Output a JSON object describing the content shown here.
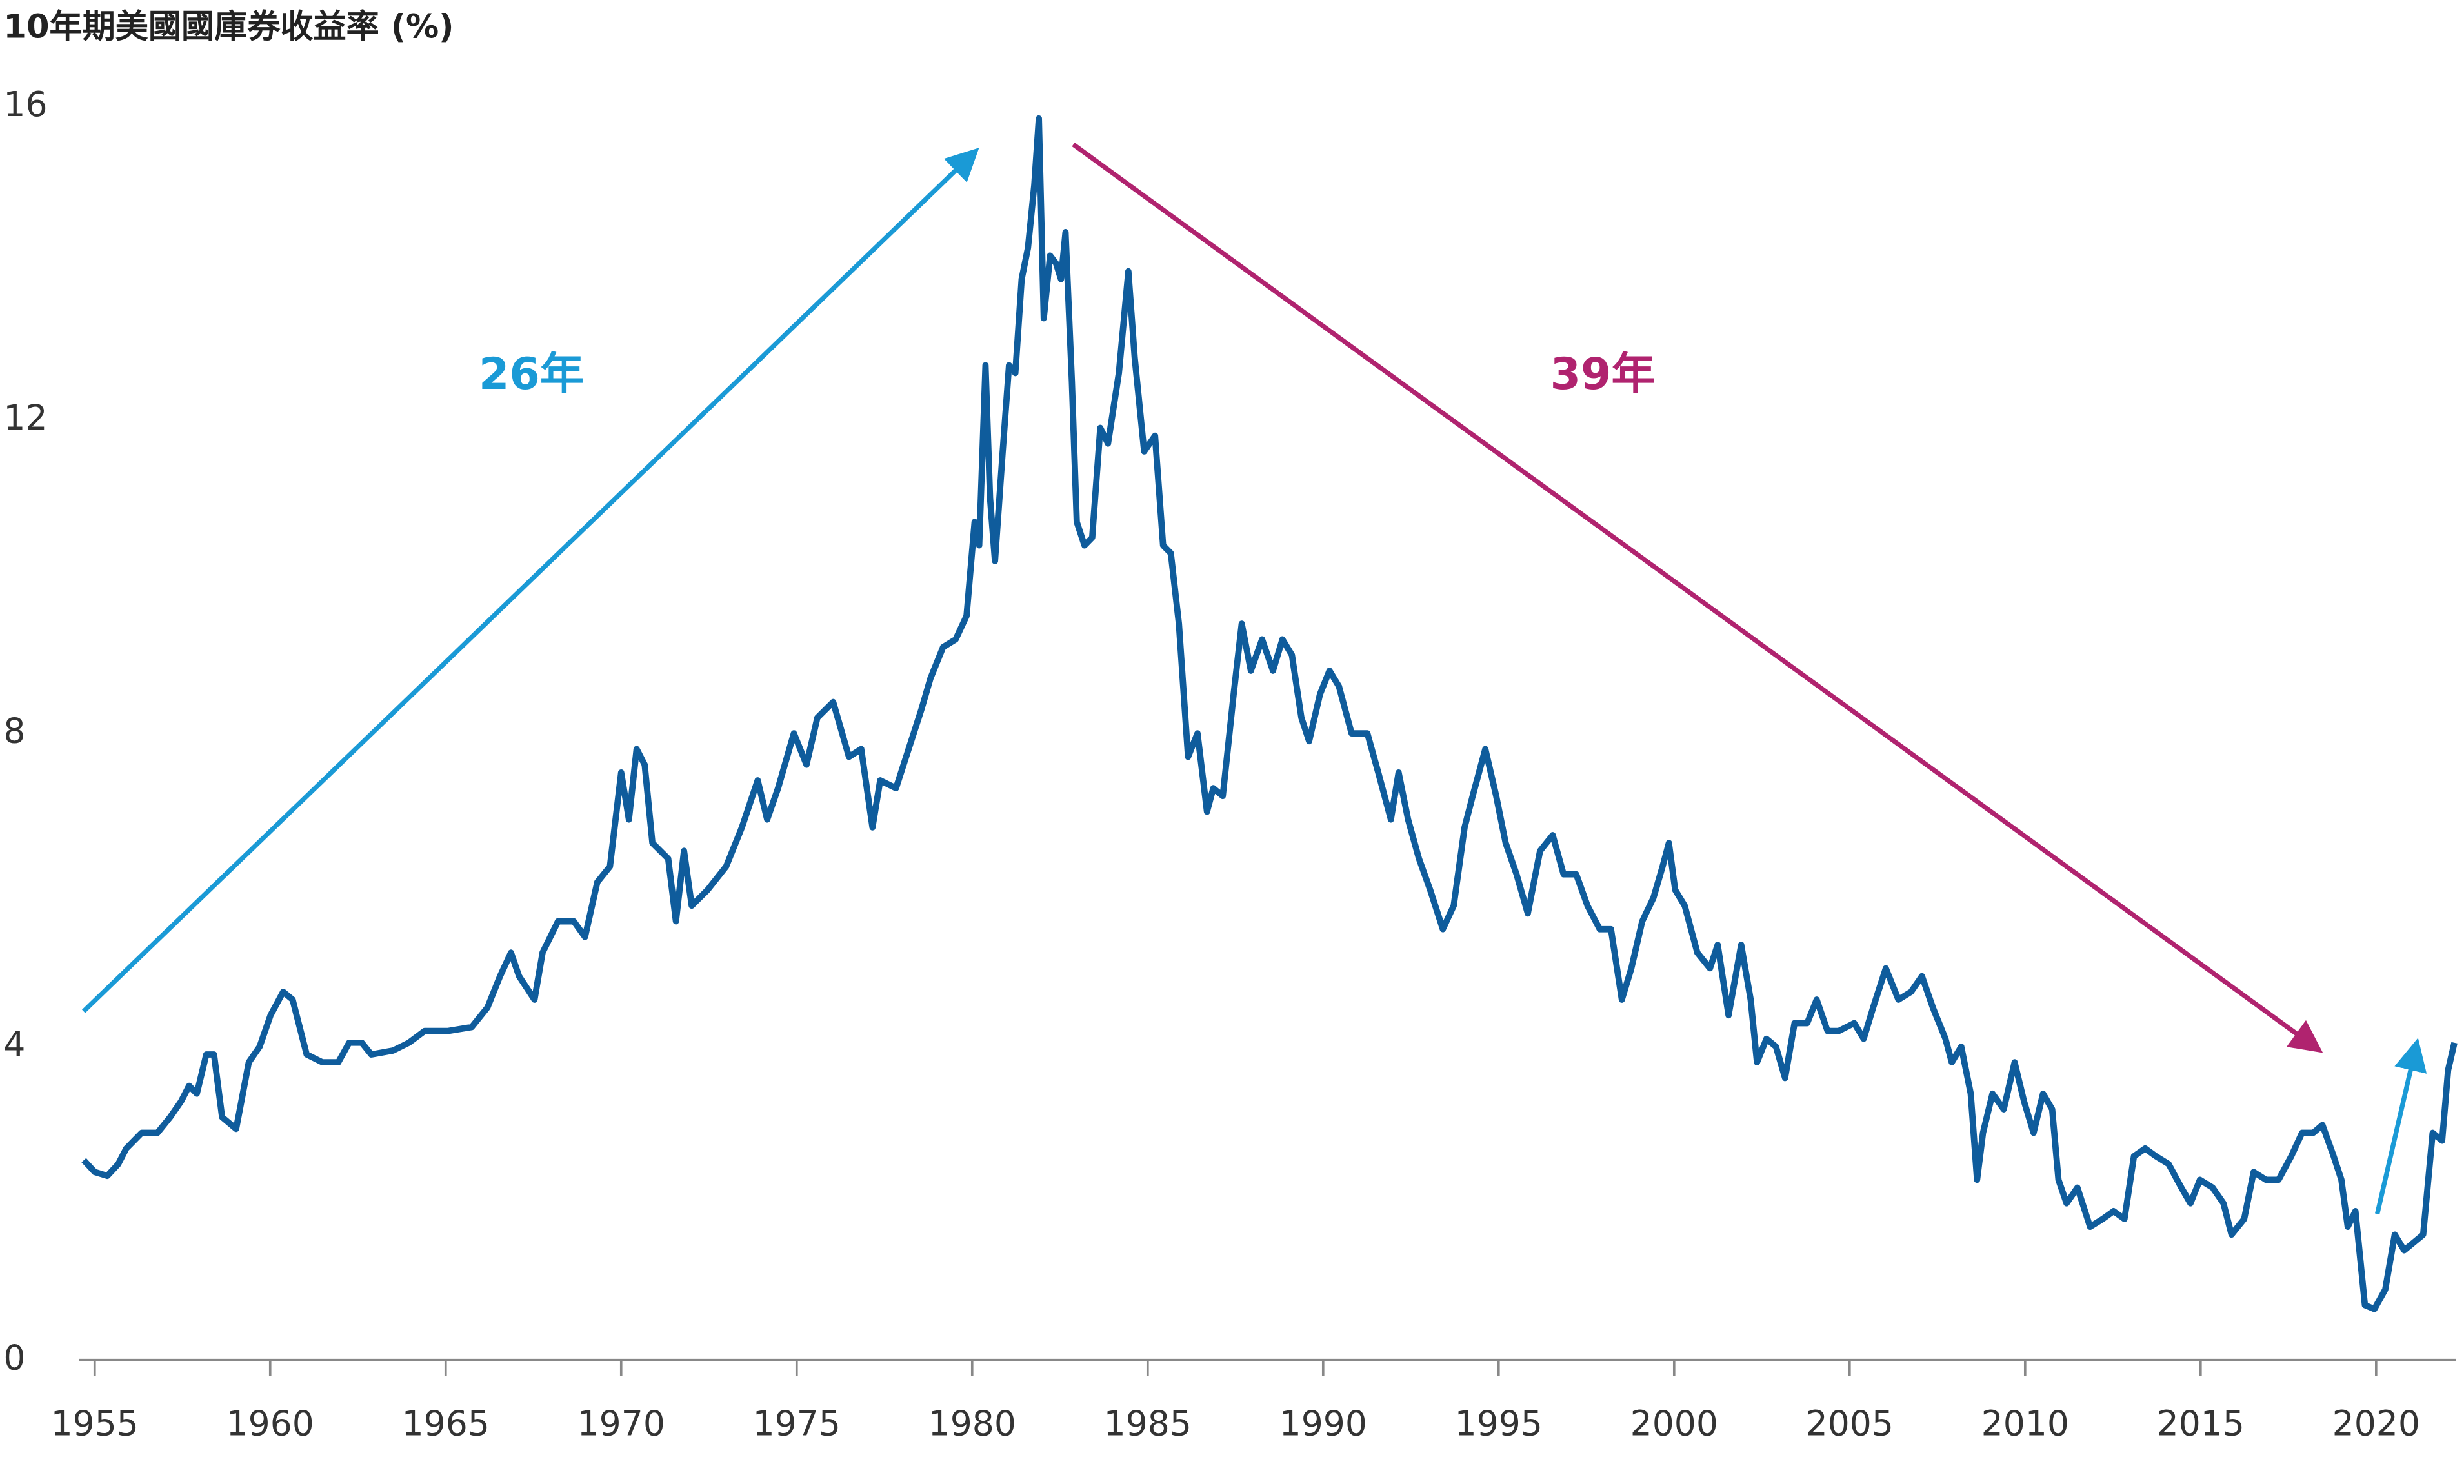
{
  "chart_data": {
    "type": "line",
    "title": "10年期美國國庫券收益率 (%)",
    "annotations": [
      "26年",
      "39年"
    ],
    "color": "#0f5c9c",
    "xlim": [
      1954.55,
      2022.27
    ],
    "xticks": [
      1955,
      1960,
      1965,
      1970,
      1975,
      1980,
      1985,
      1990,
      1995,
      2000,
      2005,
      2010,
      2015,
      2020
    ],
    "ylim": [
      0,
      16
    ],
    "yticks": [
      0,
      4,
      8,
      12,
      16
    ],
    "grid": false,
    "x": [
      1954.69,
      1955.0,
      1955.36,
      1955.67,
      1955.9,
      1956.34,
      1956.79,
      1957.15,
      1957.46,
      1957.69,
      1957.91,
      1958.18,
      1958.4,
      1958.63,
      1959.03,
      1959.39,
      1959.7,
      1960.01,
      1960.37,
      1960.64,
      1961.04,
      1961.49,
      1961.94,
      1962.25,
      1962.61,
      1962.88,
      1963.5,
      1963.95,
      1964.4,
      1965.07,
      1965.74,
      1966.19,
      1966.55,
      1966.86,
      1967.09,
      1967.53,
      1967.76,
      1968.2,
      1968.65,
      1968.97,
      1969.32,
      1969.68,
      1970.0,
      1970.22,
      1970.44,
      1970.67,
      1970.89,
      1971.34,
      1971.56,
      1971.79,
      1972.01,
      1972.46,
      1972.99,
      1973.44,
      1973.89,
      1974.16,
      1974.47,
      1974.92,
      1975.28,
      1975.59,
      1976.04,
      1976.49,
      1976.84,
      1977.16,
      1977.38,
      1977.83,
      1978.19,
      1978.55,
      1978.81,
      1979.17,
      1979.53,
      1979.84,
      1980.07,
      1980.2,
      1980.38,
      1980.51,
      1980.65,
      1980.87,
      1981.05,
      1981.23,
      1981.41,
      1981.59,
      1981.77,
      1981.9,
      1982.04,
      1982.22,
      1982.39,
      1982.53,
      1982.66,
      1982.84,
      1982.98,
      1983.2,
      1983.42,
      1983.65,
      1983.87,
      1984.18,
      1984.45,
      1984.63,
      1984.9,
      1985.21,
      1985.44,
      1985.66,
      1985.89,
      1986.15,
      1986.42,
      1986.69,
      1986.87,
      1987.14,
      1987.45,
      1987.68,
      1987.94,
      1988.26,
      1988.57,
      1988.84,
      1989.11,
      1989.38,
      1989.6,
      1989.91,
      1990.18,
      1990.45,
      1990.81,
      1991.26,
      1991.57,
      1991.93,
      1992.15,
      1992.42,
      1992.73,
      1993.05,
      1993.41,
      1993.72,
      1994.03,
      1994.26,
      1994.62,
      1994.93,
      1995.2,
      1995.51,
      1995.83,
      1996.18,
      1996.54,
      1996.85,
      1997.21,
      1997.53,
      1997.88,
      1998.2,
      1998.51,
      1998.78,
      1999.09,
      1999.41,
      1999.67,
      1999.85,
      2000.03,
      2000.3,
      2000.66,
      2001.02,
      2001.24,
      2001.55,
      2001.91,
      2002.18,
      2002.36,
      2002.63,
      2002.9,
      2003.16,
      2003.43,
      2003.79,
      2004.06,
      2004.37,
      2004.69,
      2005.13,
      2005.4,
      2005.67,
      2006.03,
      2006.39,
      2006.75,
      2007.06,
      2007.37,
      2007.73,
      2007.91,
      2008.18,
      2008.45,
      2008.63,
      2008.8,
      2009.07,
      2009.39,
      2009.7,
      2009.97,
      2010.24,
      2010.51,
      2010.77,
      2010.95,
      2011.18,
      2011.49,
      2011.85,
      2012.21,
      2012.52,
      2012.83,
      2013.1,
      2013.42,
      2013.73,
      2014.09,
      2014.45,
      2014.71,
      2014.98,
      2015.34,
      2015.65,
      2015.88,
      2016.24,
      2016.51,
      2016.86,
      2017.22,
      2017.58,
      2017.89,
      2018.21,
      2018.47,
      2018.79,
      2019.01,
      2019.19,
      2019.41,
      2019.68,
      2019.95,
      2020.26,
      2020.53,
      2020.8,
      2021.07,
      2021.34,
      2021.61,
      2021.88,
      2022.05,
      2022.23
    ],
    "values": [
      2.55,
      2.4,
      2.35,
      2.5,
      2.7,
      2.9,
      2.9,
      3.1,
      3.3,
      3.5,
      3.4,
      3.9,
      3.9,
      3.1,
      2.95,
      3.8,
      4.0,
      4.4,
      4.7,
      4.6,
      3.9,
      3.8,
      3.8,
      4.05,
      4.05,
      3.9,
      3.95,
      4.05,
      4.2,
      4.2,
      4.25,
      4.5,
      4.9,
      5.2,
      4.9,
      4.6,
      5.2,
      5.6,
      5.6,
      5.4,
      6.1,
      6.3,
      7.5,
      6.9,
      7.8,
      7.6,
      6.6,
      6.4,
      5.6,
      6.5,
      5.8,
      6.0,
      6.3,
      6.8,
      7.4,
      6.9,
      7.3,
      8.0,
      7.6,
      8.2,
      8.4,
      7.7,
      7.8,
      6.8,
      7.4,
      7.3,
      7.8,
      8.3,
      8.7,
      9.1,
      9.2,
      9.5,
      10.7,
      10.4,
      12.7,
      11.0,
      10.2,
      11.6,
      12.7,
      12.6,
      13.8,
      14.2,
      15.0,
      15.85,
      13.3,
      14.1,
      14.0,
      13.8,
      14.4,
      12.5,
      10.7,
      10.4,
      10.5,
      11.9,
      11.7,
      12.6,
      13.9,
      12.8,
      11.6,
      11.8,
      10.4,
      10.3,
      9.4,
      7.7,
      8.0,
      7.0,
      7.3,
      7.2,
      8.5,
      9.4,
      8.8,
      9.2,
      8.8,
      9.2,
      9.0,
      8.2,
      7.9,
      8.5,
      8.8,
      8.6,
      8.0,
      8.0,
      7.5,
      6.9,
      7.5,
      6.9,
      6.4,
      6.0,
      5.5,
      5.8,
      6.8,
      7.2,
      7.8,
      7.2,
      6.6,
      6.2,
      5.7,
      6.5,
      6.7,
      6.2,
      6.2,
      5.8,
      5.5,
      5.5,
      4.6,
      5.0,
      5.6,
      5.9,
      6.3,
      6.6,
      6.0,
      5.8,
      5.2,
      5.0,
      5.3,
      4.4,
      5.3,
      4.6,
      3.8,
      4.1,
      4.0,
      3.6,
      4.3,
      4.3,
      4.6,
      4.2,
      4.2,
      4.3,
      4.1,
      4.5,
      5.0,
      4.6,
      4.7,
      4.9,
      4.5,
      4.1,
      3.8,
      4.0,
      3.4,
      2.3,
      2.9,
      3.4,
      3.2,
      3.8,
      3.3,
      2.9,
      3.4,
      3.2,
      2.3,
      2.0,
      2.2,
      1.7,
      1.8,
      1.9,
      1.8,
      2.6,
      2.7,
      2.6,
      2.5,
      2.2,
      2.0,
      2.3,
      2.2,
      2.0,
      1.6,
      1.8,
      2.4,
      2.3,
      2.3,
      2.6,
      2.9,
      2.9,
      3.0,
      2.6,
      2.3,
      1.7,
      1.9,
      0.7,
      0.65,
      0.9,
      1.6,
      1.4,
      1.5,
      1.6,
      2.9,
      2.8,
      3.7,
      4.05
    ]
  }
}
